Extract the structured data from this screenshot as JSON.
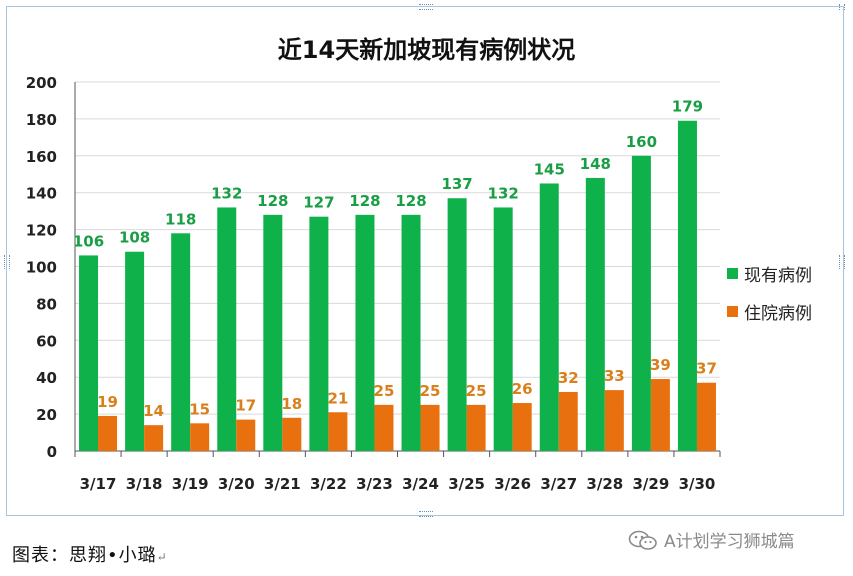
{
  "chart_data": {
    "type": "bar",
    "title": "近14天新加坡现有病例状况",
    "categories": [
      "3/17",
      "3/18",
      "3/19",
      "3/20",
      "3/21",
      "3/22",
      "3/23",
      "3/24",
      "3/25",
      "3/26",
      "3/27",
      "3/28",
      "3/29",
      "3/30"
    ],
    "series": [
      {
        "name": "现有病例",
        "color": "#0fb14a",
        "label_color": "#1a9e45",
        "values": [
          106,
          108,
          118,
          132,
          128,
          127,
          128,
          128,
          137,
          132,
          145,
          148,
          160,
          179
        ]
      },
      {
        "name": "住院病例",
        "color": "#e8700f",
        "label_color": "#d9801c",
        "values": [
          19,
          14,
          15,
          17,
          18,
          21,
          25,
          25,
          25,
          26,
          32,
          33,
          39,
          37
        ]
      }
    ],
    "ylim": [
      0,
      200
    ],
    "yticks": [
      0,
      20,
      40,
      60,
      80,
      100,
      120,
      140,
      160,
      180,
      200
    ],
    "grid": true,
    "legend_position": "right"
  },
  "caption": {
    "text": "图表：思翔•小璐",
    "mark": "↵"
  },
  "watermark": {
    "icon": "wechat-icon",
    "text": "A计划学习狮城篇"
  }
}
